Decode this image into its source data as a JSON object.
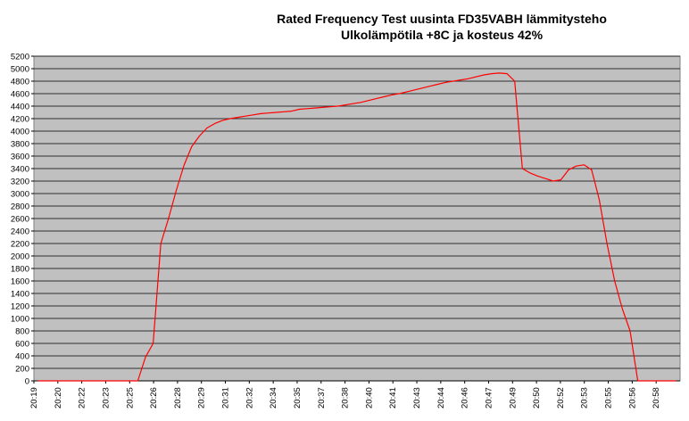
{
  "chart_data": {
    "type": "line",
    "title": [
      "Rated Frequency  Test  uusinta FD35VABH lämmitysteho",
      "Ulkolämpötila  +8C ja kosteus 42%"
    ],
    "xlabel": "",
    "ylabel": "",
    "ylim": [
      0,
      5200
    ],
    "ytick_step": 200,
    "grid": true,
    "legend": "none",
    "plot_background": "#c0c0c0",
    "line_color": "#ff0000",
    "grid_color": "#000000",
    "x_start": "20:19",
    "x_interval_minutes": 0.25,
    "x_tick_labels": [
      "20:19",
      "20:20",
      "20:22",
      "20:23",
      "20:25",
      "20:26",
      "20:28",
      "20:29",
      "20:31",
      "20:32",
      "20:34",
      "20:35",
      "20:37",
      "20:38",
      "20:40",
      "20:41",
      "20:43",
      "20:44",
      "20:46",
      "20:47",
      "20:49",
      "20:50",
      "20:52",
      "20:53",
      "20:55",
      "20:56",
      "20:58"
    ],
    "series": [
      {
        "values": [
          0,
          0,
          0,
          0,
          0,
          0,
          0,
          0,
          0,
          0,
          0,
          0,
          0,
          0,
          380,
          600,
          2200,
          2600,
          3050,
          3450,
          3750,
          3920,
          4050,
          4120,
          4170,
          4200,
          4220,
          4240,
          4260,
          4280,
          4290,
          4300,
          4310,
          4320,
          4350,
          4360,
          4370,
          4380,
          4390,
          4400,
          4420,
          4440,
          4460,
          4490,
          4520,
          4550,
          4580,
          4600,
          4630,
          4660,
          4690,
          4720,
          4750,
          4780,
          4800,
          4820,
          4840,
          4870,
          4900,
          4920,
          4930,
          4920,
          4800,
          3400,
          3330,
          3280,
          3240,
          3200,
          3220,
          3380,
          3440,
          3460,
          3380,
          2900,
          2200,
          1600,
          1150,
          800,
          0,
          0,
          0,
          0,
          0,
          0
        ]
      }
    ]
  }
}
